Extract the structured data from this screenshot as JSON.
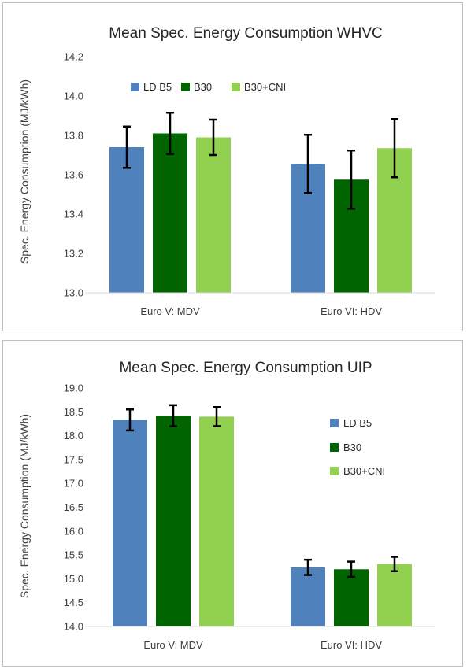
{
  "chart_data": [
    {
      "type": "bar",
      "title": "Mean Spec. Energy Consumption WHVC",
      "ylabel": "Spec. Energy Consumption (MJ/kWh)",
      "xlabel": "",
      "categories": [
        "Euro V: MDV",
        "Euro VI: HDV"
      ],
      "ylim": [
        13.0,
        14.2
      ],
      "yticks": [
        "13.0",
        "13.2",
        "13.4",
        "13.6",
        "13.8",
        "14.0",
        "14.2"
      ],
      "grid": false,
      "legend": "top",
      "series": [
        {
          "name": "LD B5",
          "color": "#4f81bd",
          "values": [
            13.74,
            13.655
          ],
          "errors": [
            0.105,
            0.148
          ]
        },
        {
          "name": "B30",
          "color": "#006400",
          "values": [
            13.81,
            13.575
          ],
          "errors": [
            0.105,
            0.148
          ]
        },
        {
          "name": "B30+CNI",
          "color": "#92d050",
          "values": [
            13.79,
            13.735
          ],
          "errors": [
            0.09,
            0.148
          ]
        }
      ]
    },
    {
      "type": "bar",
      "title": "Mean Spec. Energy Consumption UIP",
      "ylabel": "Spec. Energy Consumption (MJ/kWh)",
      "xlabel": "",
      "categories": [
        "Euro V: MDV",
        "Euro VI: HDV"
      ],
      "ylim": [
        14.0,
        19.0
      ],
      "yticks": [
        "14.0",
        "14.5",
        "15.0",
        "15.5",
        "16.0",
        "16.5",
        "17.0",
        "17.5",
        "18.0",
        "18.5",
        "19.0"
      ],
      "grid": false,
      "legend": "right",
      "series": [
        {
          "name": "LD B5",
          "color": "#4f81bd",
          "values": [
            18.33,
            15.24
          ],
          "errors": [
            0.22,
            0.16
          ]
        },
        {
          "name": "B30",
          "color": "#006400",
          "values": [
            18.42,
            15.2
          ],
          "errors": [
            0.22,
            0.16
          ]
        },
        {
          "name": "B30+CNI",
          "color": "#92d050",
          "values": [
            18.4,
            15.31
          ],
          "errors": [
            0.2,
            0.15
          ]
        }
      ]
    }
  ]
}
